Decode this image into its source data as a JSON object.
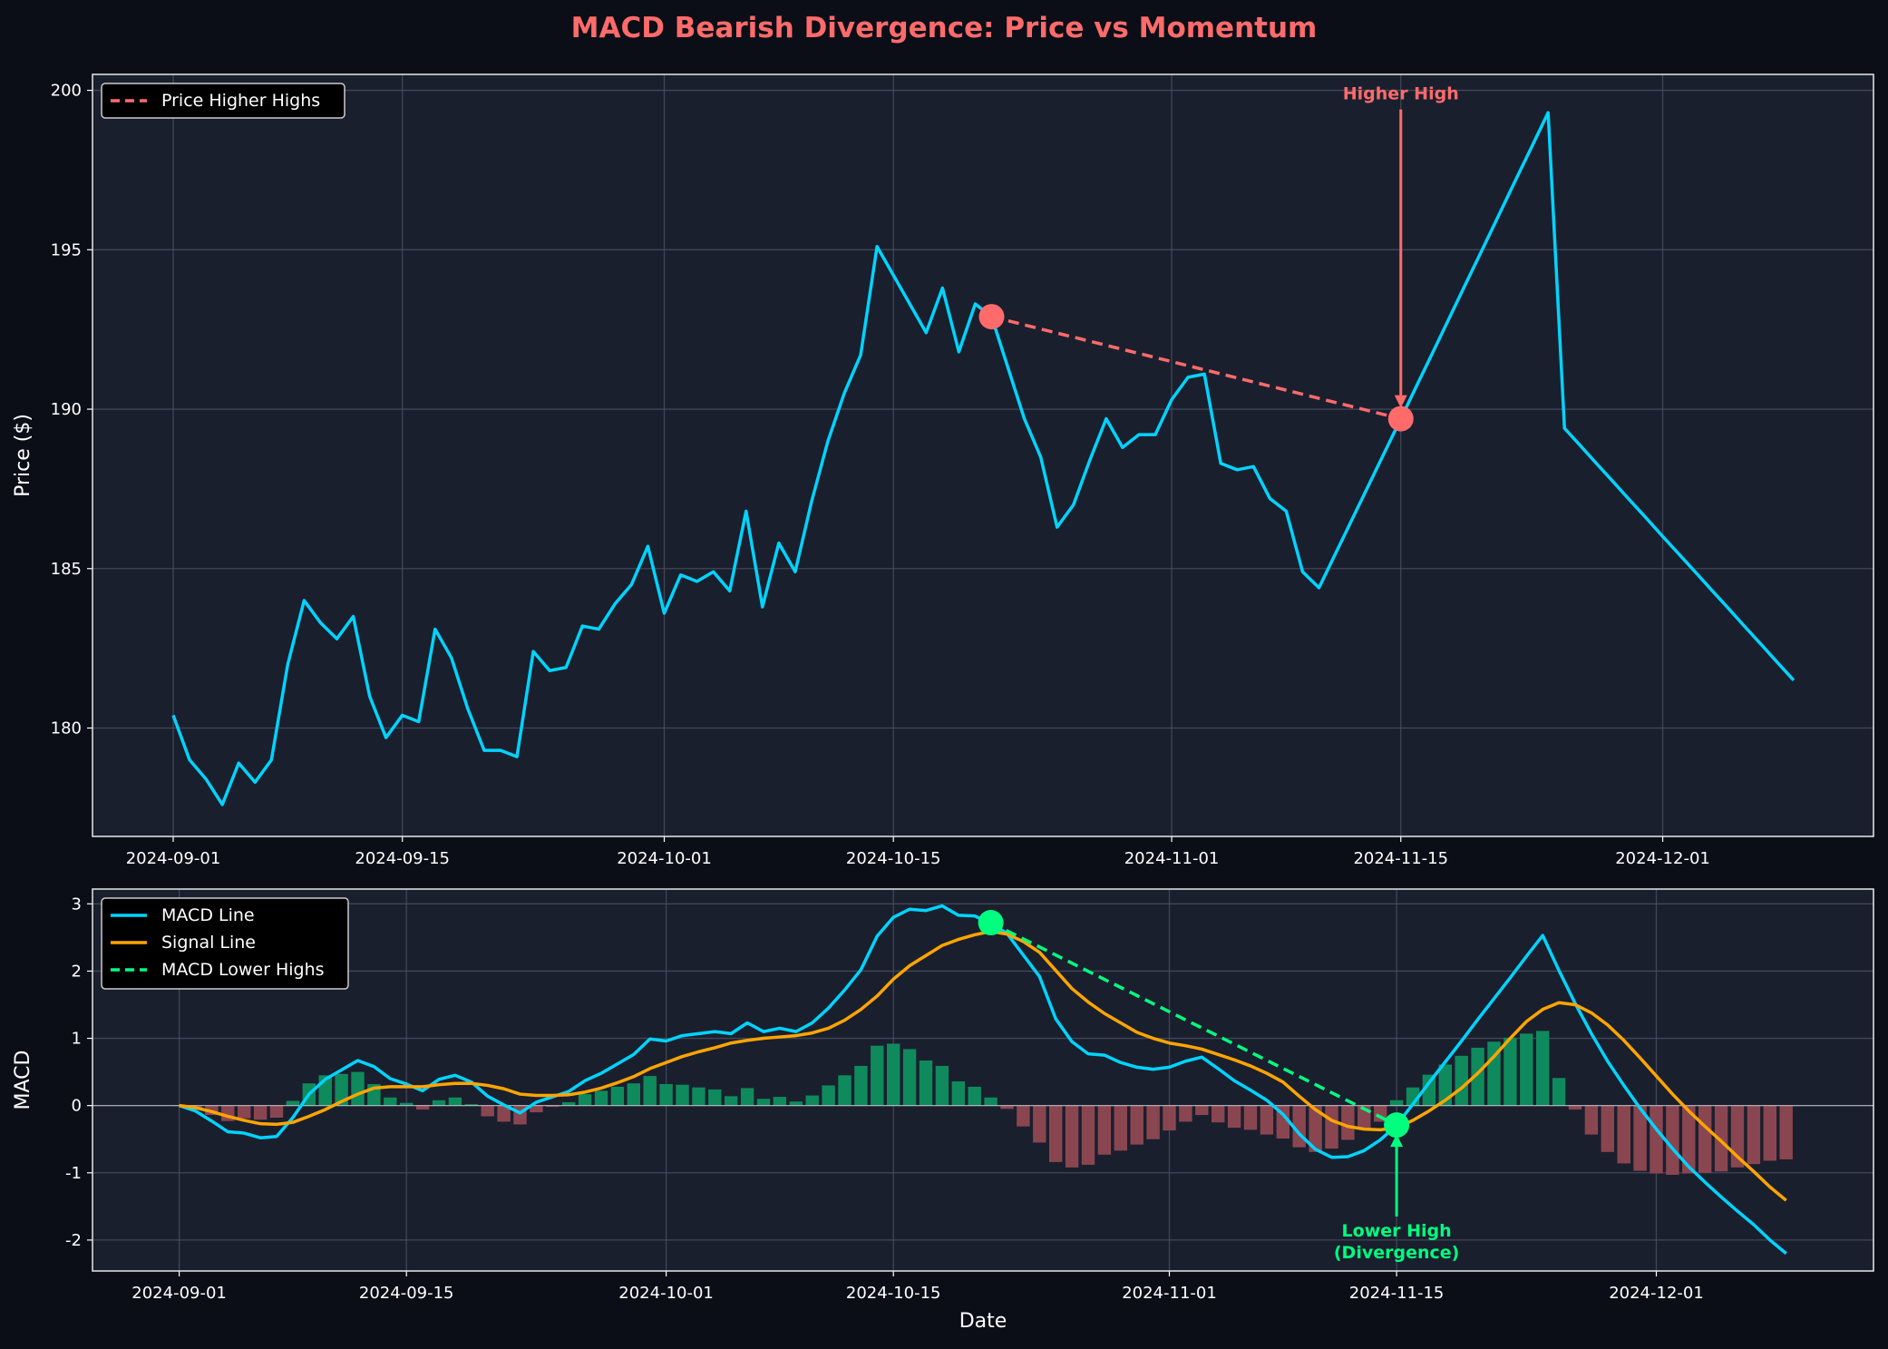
{
  "title": "MACD Bearish Divergence: Price vs Momentum",
  "colors": {
    "figure_bg": "#0b0e17",
    "axes_bg": "#1a1f2e",
    "title": "#ff6b6b",
    "price": "#00d4ff",
    "macd": "#00d4ff",
    "signal": "#ffa500",
    "price_divergence": "#ff6b6b",
    "macd_divergence": "#00ff7f",
    "hist_pos": "#0f8a5c",
    "hist_neg": "#8a4650",
    "grid": "#4a5060",
    "text": "#ffffff"
  },
  "chart_data": [
    {
      "type": "line",
      "panel": "price",
      "ylabel": "Price ($)",
      "xlabel": "",
      "ylim": [
        176.6,
        200.5
      ],
      "yticks": [
        180,
        185,
        190,
        195,
        200
      ],
      "xticks": [
        {
          "day": 0,
          "label": "2024-09-01"
        },
        {
          "day": 14,
          "label": "2024-09-15"
        },
        {
          "day": 30,
          "label": "2024-10-01"
        },
        {
          "day": 44,
          "label": "2024-10-15"
        },
        {
          "day": 61,
          "label": "2024-11-01"
        },
        {
          "day": 75,
          "label": "2024-11-15"
        },
        {
          "day": 91,
          "label": "2024-12-01"
        }
      ],
      "x_start_date": "2024-09-01",
      "x_end_date": "2024-12-09",
      "grid": true,
      "legend": {
        "position": "top-left",
        "entries": [
          "Price Higher Highs"
        ]
      },
      "series": [
        {
          "key": "price",
          "values": [
            180.4,
            179.0,
            178.4,
            177.6,
            178.9,
            178.3,
            179.0,
            182.0,
            184.0,
            183.3,
            182.8,
            183.5,
            181.0,
            179.7,
            180.4,
            180.2,
            183.1,
            182.2,
            180.6,
            179.3,
            179.3,
            179.1,
            182.4,
            181.8,
            181.9,
            183.2,
            183.1,
            183.9,
            184.5,
            185.7,
            183.6,
            184.8,
            184.6,
            184.9,
            184.3,
            186.8,
            183.8,
            185.8,
            184.9,
            187.1,
            189.0,
            190.5,
            191.7,
            195.1,
            194.2,
            193.3,
            192.4,
            193.8,
            191.8,
            193.3,
            192.9,
            191.3,
            189.7,
            188.5,
            186.3,
            187.0,
            188.4,
            189.7,
            188.8,
            189.2,
            189.2,
            190.3,
            191.0,
            191.1,
            188.3,
            188.1,
            188.2,
            187.2,
            186.8,
            184.9,
            184.4,
            185.46,
            186.52,
            187.58,
            188.64,
            189.7,
            190.77,
            191.83,
            192.9,
            193.97,
            195.03,
            196.1,
            197.17,
            198.23,
            199.3,
            189.4,
            188.84,
            188.27,
            187.71,
            187.14,
            186.58,
            186.01,
            185.45,
            184.89,
            184.32,
            183.76,
            183.19,
            182.63,
            182.06,
            181.5
          ]
        }
      ],
      "divergence": {
        "label": "Price Higher Highs",
        "points": [
          {
            "date": "2024-10-21",
            "day": 50,
            "value": 192.9
          },
          {
            "date": "2024-11-15",
            "day": 75,
            "value": 189.7
          }
        ]
      },
      "annotation": {
        "text": "Higher High",
        "day": 75,
        "value": 189.7,
        "text_value": 199.4
      }
    },
    {
      "type": "line",
      "panel": "macd",
      "ylabel": "MACD",
      "xlabel": "Date",
      "ylim": [
        -2.46,
        3.22
      ],
      "yticks": [
        -2,
        -1,
        0,
        1,
        2,
        3
      ],
      "xticks": [
        {
          "day": 0,
          "label": "2024-09-01"
        },
        {
          "day": 14,
          "label": "2024-09-15"
        },
        {
          "day": 30,
          "label": "2024-10-01"
        },
        {
          "day": 44,
          "label": "2024-10-15"
        },
        {
          "day": 61,
          "label": "2024-11-01"
        },
        {
          "day": 75,
          "label": "2024-11-15"
        },
        {
          "day": 91,
          "label": "2024-12-01"
        }
      ],
      "grid": true,
      "legend": {
        "position": "top-left",
        "entries": [
          "MACD Line",
          "Signal Line",
          "MACD Lower Highs"
        ]
      },
      "series": [
        {
          "key": "macd",
          "name": "MACD Line",
          "values": [
            0,
            -0.08,
            -0.23,
            -0.39,
            -0.41,
            -0.48,
            -0.46,
            -0.18,
            0.17,
            0.39,
            0.53,
            0.67,
            0.58,
            0.4,
            0.32,
            0.22,
            0.39,
            0.45,
            0.35,
            0.14,
            0.01,
            -0.11,
            0.05,
            0.13,
            0.21,
            0.37,
            0.48,
            0.62,
            0.76,
            0.99,
            0.96,
            1.04,
            1.07,
            1.1,
            1.07,
            1.23,
            1.1,
            1.15,
            1.1,
            1.23,
            1.45,
            1.72,
            2.02,
            2.52,
            2.8,
            2.92,
            2.9,
            2.97,
            2.83,
            2.82,
            2.71,
            2.56,
            2.24,
            1.92,
            1.29,
            0.95,
            0.77,
            0.75,
            0.64,
            0.57,
            0.54,
            0.57,
            0.66,
            0.72,
            0.55,
            0.37,
            0.23,
            0.08,
            -0.13,
            -0.42,
            -0.65,
            -0.77,
            -0.76,
            -0.67,
            -0.51,
            -0.29,
            0.02,
            0.34,
            0.65,
            0.96,
            1.28,
            1.59,
            1.9,
            2.22,
            2.53,
            2.01,
            1.52,
            1.07,
            0.66,
            0.3,
            -0.04,
            -0.35,
            -0.64,
            -0.91,
            -1.14,
            -1.36,
            -1.57,
            -1.77,
            -2.0,
            -2.2
          ]
        },
        {
          "key": "signal",
          "name": "Signal Line",
          "values": [
            0,
            -0.03,
            -0.09,
            -0.16,
            -0.22,
            -0.27,
            -0.28,
            -0.25,
            -0.16,
            -0.06,
            0.06,
            0.17,
            0.26,
            0.28,
            0.28,
            0.28,
            0.31,
            0.33,
            0.33,
            0.3,
            0.25,
            0.17,
            0.15,
            0.15,
            0.16,
            0.2,
            0.26,
            0.34,
            0.43,
            0.55,
            0.64,
            0.73,
            0.8,
            0.86,
            0.93,
            0.97,
            1.0,
            1.02,
            1.04,
            1.08,
            1.15,
            1.27,
            1.43,
            1.63,
            1.88,
            2.08,
            2.23,
            2.38,
            2.47,
            2.54,
            2.59,
            2.55,
            2.44,
            2.28,
            2.01,
            1.74,
            1.54,
            1.37,
            1.23,
            1.09,
            1.0,
            0.93,
            0.89,
            0.84,
            0.76,
            0.68,
            0.59,
            0.48,
            0.35,
            0.14,
            -0.06,
            -0.22,
            -0.31,
            -0.35,
            -0.36,
            -0.33,
            -0.22,
            -0.08,
            0.08,
            0.26,
            0.48,
            0.73,
            1.0,
            1.25,
            1.43,
            1.53,
            1.5,
            1.38,
            1.2,
            0.97,
            0.71,
            0.44,
            0.17,
            -0.08,
            -0.31,
            -0.53,
            -0.76,
            -0.98,
            -1.21,
            -1.41
          ]
        },
        {
          "key": "histogram",
          "values": [
            0,
            -0.05,
            -0.14,
            -0.23,
            -0.19,
            -0.21,
            -0.18,
            0.07,
            0.33,
            0.45,
            0.47,
            0.5,
            0.32,
            0.12,
            0.04,
            -0.06,
            0.08,
            0.12,
            0.02,
            -0.16,
            -0.24,
            -0.28,
            -0.1,
            -0.02,
            0.05,
            0.17,
            0.22,
            0.28,
            0.33,
            0.44,
            0.32,
            0.31,
            0.27,
            0.24,
            0.14,
            0.26,
            0.1,
            0.13,
            0.06,
            0.15,
            0.3,
            0.45,
            0.59,
            0.89,
            0.92,
            0.84,
            0.67,
            0.59,
            0.36,
            0.28,
            0.12,
            -0.05,
            -0.31,
            -0.55,
            -0.84,
            -0.92,
            -0.88,
            -0.73,
            -0.67,
            -0.58,
            -0.5,
            -0.37,
            -0.24,
            -0.14,
            -0.25,
            -0.33,
            -0.36,
            -0.43,
            -0.49,
            -0.62,
            -0.69,
            -0.64,
            -0.51,
            -0.35,
            -0.24,
            0.08,
            0.27,
            0.46,
            0.61,
            0.74,
            0.86,
            0.95,
            1.01,
            1.07,
            1.11,
            0.41,
            -0.06,
            -0.43,
            -0.69,
            -0.86,
            -0.97,
            -1.01,
            -1.03,
            -1.01,
            -1.0,
            -0.98,
            -0.92,
            -0.87,
            -0.82,
            -0.8
          ]
        }
      ],
      "divergence": {
        "label": "MACD Lower Highs",
        "points": [
          {
            "date": "2024-10-21",
            "day": 50,
            "value": 2.72
          },
          {
            "date": "2024-11-15",
            "day": 75,
            "value": -0.29
          }
        ]
      },
      "annotation": {
        "text_line1": "Lower High",
        "text_line2": "(Divergence)",
        "day": 75,
        "value": -0.29,
        "text_value": -2.0
      }
    }
  ]
}
